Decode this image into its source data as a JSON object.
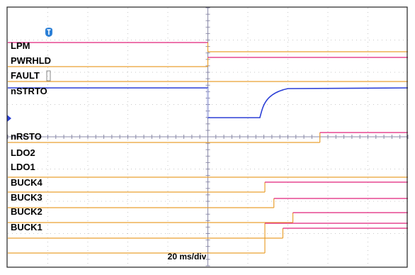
{
  "chart_data": {
    "type": "line",
    "title": "",
    "xlabel": "20 ms/div",
    "ylabel": "",
    "grid": true,
    "x_divisions": 10,
    "x_range_ms": [
      0,
      200
    ],
    "colors": {
      "high_trace": "#e0227a",
      "low_trace": "#e9a030",
      "analog_trace": "#2b3fd6",
      "grid": "#c8c8c8",
      "center_axis": "#8a8aa8",
      "frame": "#222222",
      "marker": "#2b3fd6"
    },
    "trigger_marker": "trigger-icon",
    "level_marker": "channel-level-icon",
    "series": [
      {
        "name": "LPM",
        "kind": "digital",
        "initial": 1,
        "edges_ms": [
          100.0
        ]
      },
      {
        "name": "PWRHLD",
        "kind": "digital",
        "initial": 0,
        "edges_ms": [
          100.0
        ]
      },
      {
        "name": "FAULT",
        "kind": "digital",
        "initial": 0,
        "edges_ms": []
      },
      {
        "name": "nSTRTO",
        "kind": "analog",
        "high_v": 1.0,
        "low_v": 0.0,
        "drop_ms": 100.0,
        "rise_start_ms": 126.0,
        "rise_end_ms": 140.0
      },
      {
        "name": "nRSTO",
        "kind": "digital",
        "initial": 0,
        "edges_ms": [
          156.0
        ]
      },
      {
        "name": "LDO2",
        "kind": "digital",
        "initial": 0,
        "edges_ms": []
      },
      {
        "name": "LDO1",
        "kind": "digital",
        "initial": 0,
        "edges_ms": [
          128.5
        ]
      },
      {
        "name": "BUCK4",
        "kind": "digital",
        "initial": 0,
        "edges_ms": [
          133.0
        ]
      },
      {
        "name": "BUCK3",
        "kind": "digital",
        "initial": 0,
        "edges_ms": [
          142.5
        ]
      },
      {
        "name": "BUCK2",
        "kind": "digital",
        "initial": 0,
        "edges_ms": [
          137.5
        ]
      },
      {
        "name": "BUCK1",
        "kind": "digital",
        "initial": 0,
        "edges_ms": [
          128.5
        ]
      }
    ]
  }
}
